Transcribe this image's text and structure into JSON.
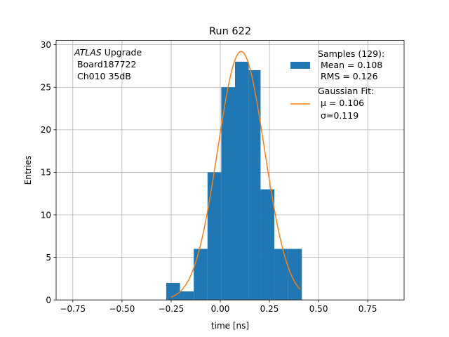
{
  "chart_data": {
    "type": "bar",
    "title": "Run 622",
    "xlabel": "time [ns]",
    "ylabel": "Entries",
    "xlim": [
      -0.835,
      0.935
    ],
    "ylim": [
      0,
      30.5
    ],
    "xticks": [
      -0.75,
      -0.5,
      -0.25,
      0.0,
      0.25,
      0.5,
      0.75
    ],
    "xtick_labels": [
      "−0.75",
      "−0.50",
      "−0.25",
      "0.00",
      "0.25",
      "0.50",
      "0.75"
    ],
    "yticks": [
      0,
      5,
      10,
      15,
      20,
      25,
      30
    ],
    "ytick_labels": [
      "0",
      "5",
      "10",
      "15",
      "20",
      "25",
      "30"
    ],
    "grid": true,
    "legend_position": "top-right",
    "histogram": {
      "name": "Samples (129):",
      "color": "#1f77b4",
      "bin_edges": [
        -0.275,
        -0.205,
        -0.135,
        -0.065,
        0.005,
        0.075,
        0.145,
        0.205,
        0.275,
        0.345,
        0.415
      ],
      "counts": [
        2,
        1,
        6,
        15,
        25,
        28,
        27,
        13,
        6,
        6
      ],
      "stats_lines": [
        " Mean = 0.108",
        " RMS = 0.126"
      ]
    },
    "fit": {
      "name": "Gaussian Fit:",
      "color": "#ff7f0e",
      "mu": 0.106,
      "sigma": 0.119,
      "amplitude": 29.2,
      "x_range": [
        -0.25,
        0.405
      ],
      "stats_lines": [
        " μ = 0.106",
        " σ=0.119"
      ]
    },
    "annotation": {
      "atlas": "ATLAS",
      "line1_rest": " Upgrade",
      "line2": " Board187722",
      "line3": " Ch010 35dB"
    }
  }
}
